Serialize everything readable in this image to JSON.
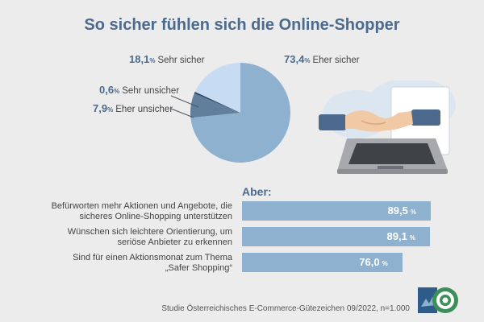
{
  "title": "So sicher fühlen sich die Online-Shopper",
  "pie": {
    "unit": "%",
    "slices": [
      {
        "value": 73.4,
        "value_label": "73,4",
        "label": "Eher sicher",
        "color": "#8eb1cf"
      },
      {
        "value": 7.9,
        "value_label": "7,9",
        "label": "Eher unsicher",
        "color": "#617f9c"
      },
      {
        "value": 0.6,
        "value_label": "0,6",
        "label": "Sehr unsicher",
        "color": "#2f4964"
      },
      {
        "value": 18.1,
        "value_label": "18,1",
        "label": "Sehr sicher",
        "color": "#c7dcf2"
      }
    ]
  },
  "aber_label": "Aber:",
  "bars": [
    {
      "question": "Befürworten mehr Aktionen und Angebote, die sicheres Online-Shopping unterstützen",
      "value": 89.5,
      "value_label": "89,5",
      "unit": "%"
    },
    {
      "question": "Wünschen sich leichtere Orientierung, um seriöse Anbieter zu erkennen",
      "value": 89.1,
      "value_label": "89,1",
      "unit": "%"
    },
    {
      "question": "Sind für einen Aktionsmonat zum Thema „Safer Shopping“",
      "value": 76.0,
      "value_label": "76,0",
      "unit": "%"
    }
  ],
  "source": "Studie Österreichisches E-Commerce-Gütezeichen 09/2022, n=1.000",
  "logo_icon": "guetezeichen-seal-icon",
  "illustration_icon": "laptop-handshake-icon",
  "chart_data": [
    {
      "type": "pie",
      "title": "So sicher fühlen sich die Online-Shopper",
      "categories": [
        "Eher sicher",
        "Eher unsicher",
        "Sehr unsicher",
        "Sehr sicher"
      ],
      "values": [
        73.4,
        7.9,
        0.6,
        18.1
      ],
      "unit": "%"
    },
    {
      "type": "bar",
      "title": "Aber:",
      "categories": [
        "Befürworten mehr Aktionen und Angebote, die sicheres Online-Shopping unterstützen",
        "Wünschen sich leichtere Orientierung, um seriöse Anbieter zu erkennen",
        "Sind für einen Aktionsmonat zum Thema „Safer Shopping“"
      ],
      "values": [
        89.5,
        89.1,
        76.0
      ],
      "unit": "%",
      "orientation": "horizontal"
    }
  ]
}
